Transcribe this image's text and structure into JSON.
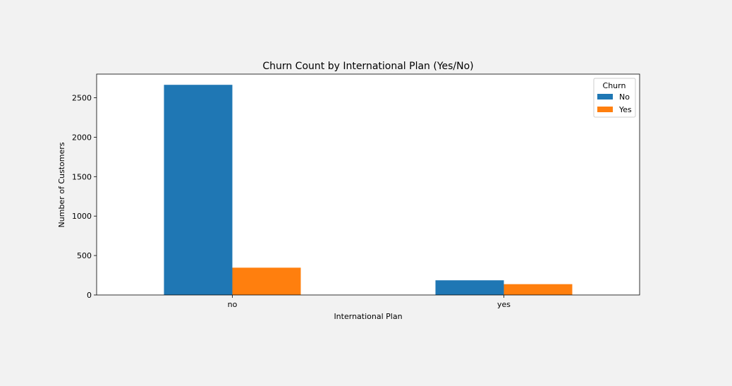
{
  "chart_data": {
    "type": "bar",
    "title": "Churn Count by International Plan (Yes/No)",
    "xlabel": "International Plan",
    "ylabel": "Number of Customers",
    "categories": [
      "no",
      "yes"
    ],
    "series": [
      {
        "name": "No",
        "values": [
          2664,
          186
        ],
        "color": "#1f77b4"
      },
      {
        "name": "Yes",
        "values": [
          346,
          137
        ],
        "color": "#ff7f0e"
      }
    ],
    "ylim": [
      0,
      2800
    ],
    "yticks": [
      0,
      500,
      1000,
      1500,
      2000,
      2500
    ],
    "grid": false,
    "legend": {
      "title": "Churn",
      "placement": "top-right"
    }
  }
}
